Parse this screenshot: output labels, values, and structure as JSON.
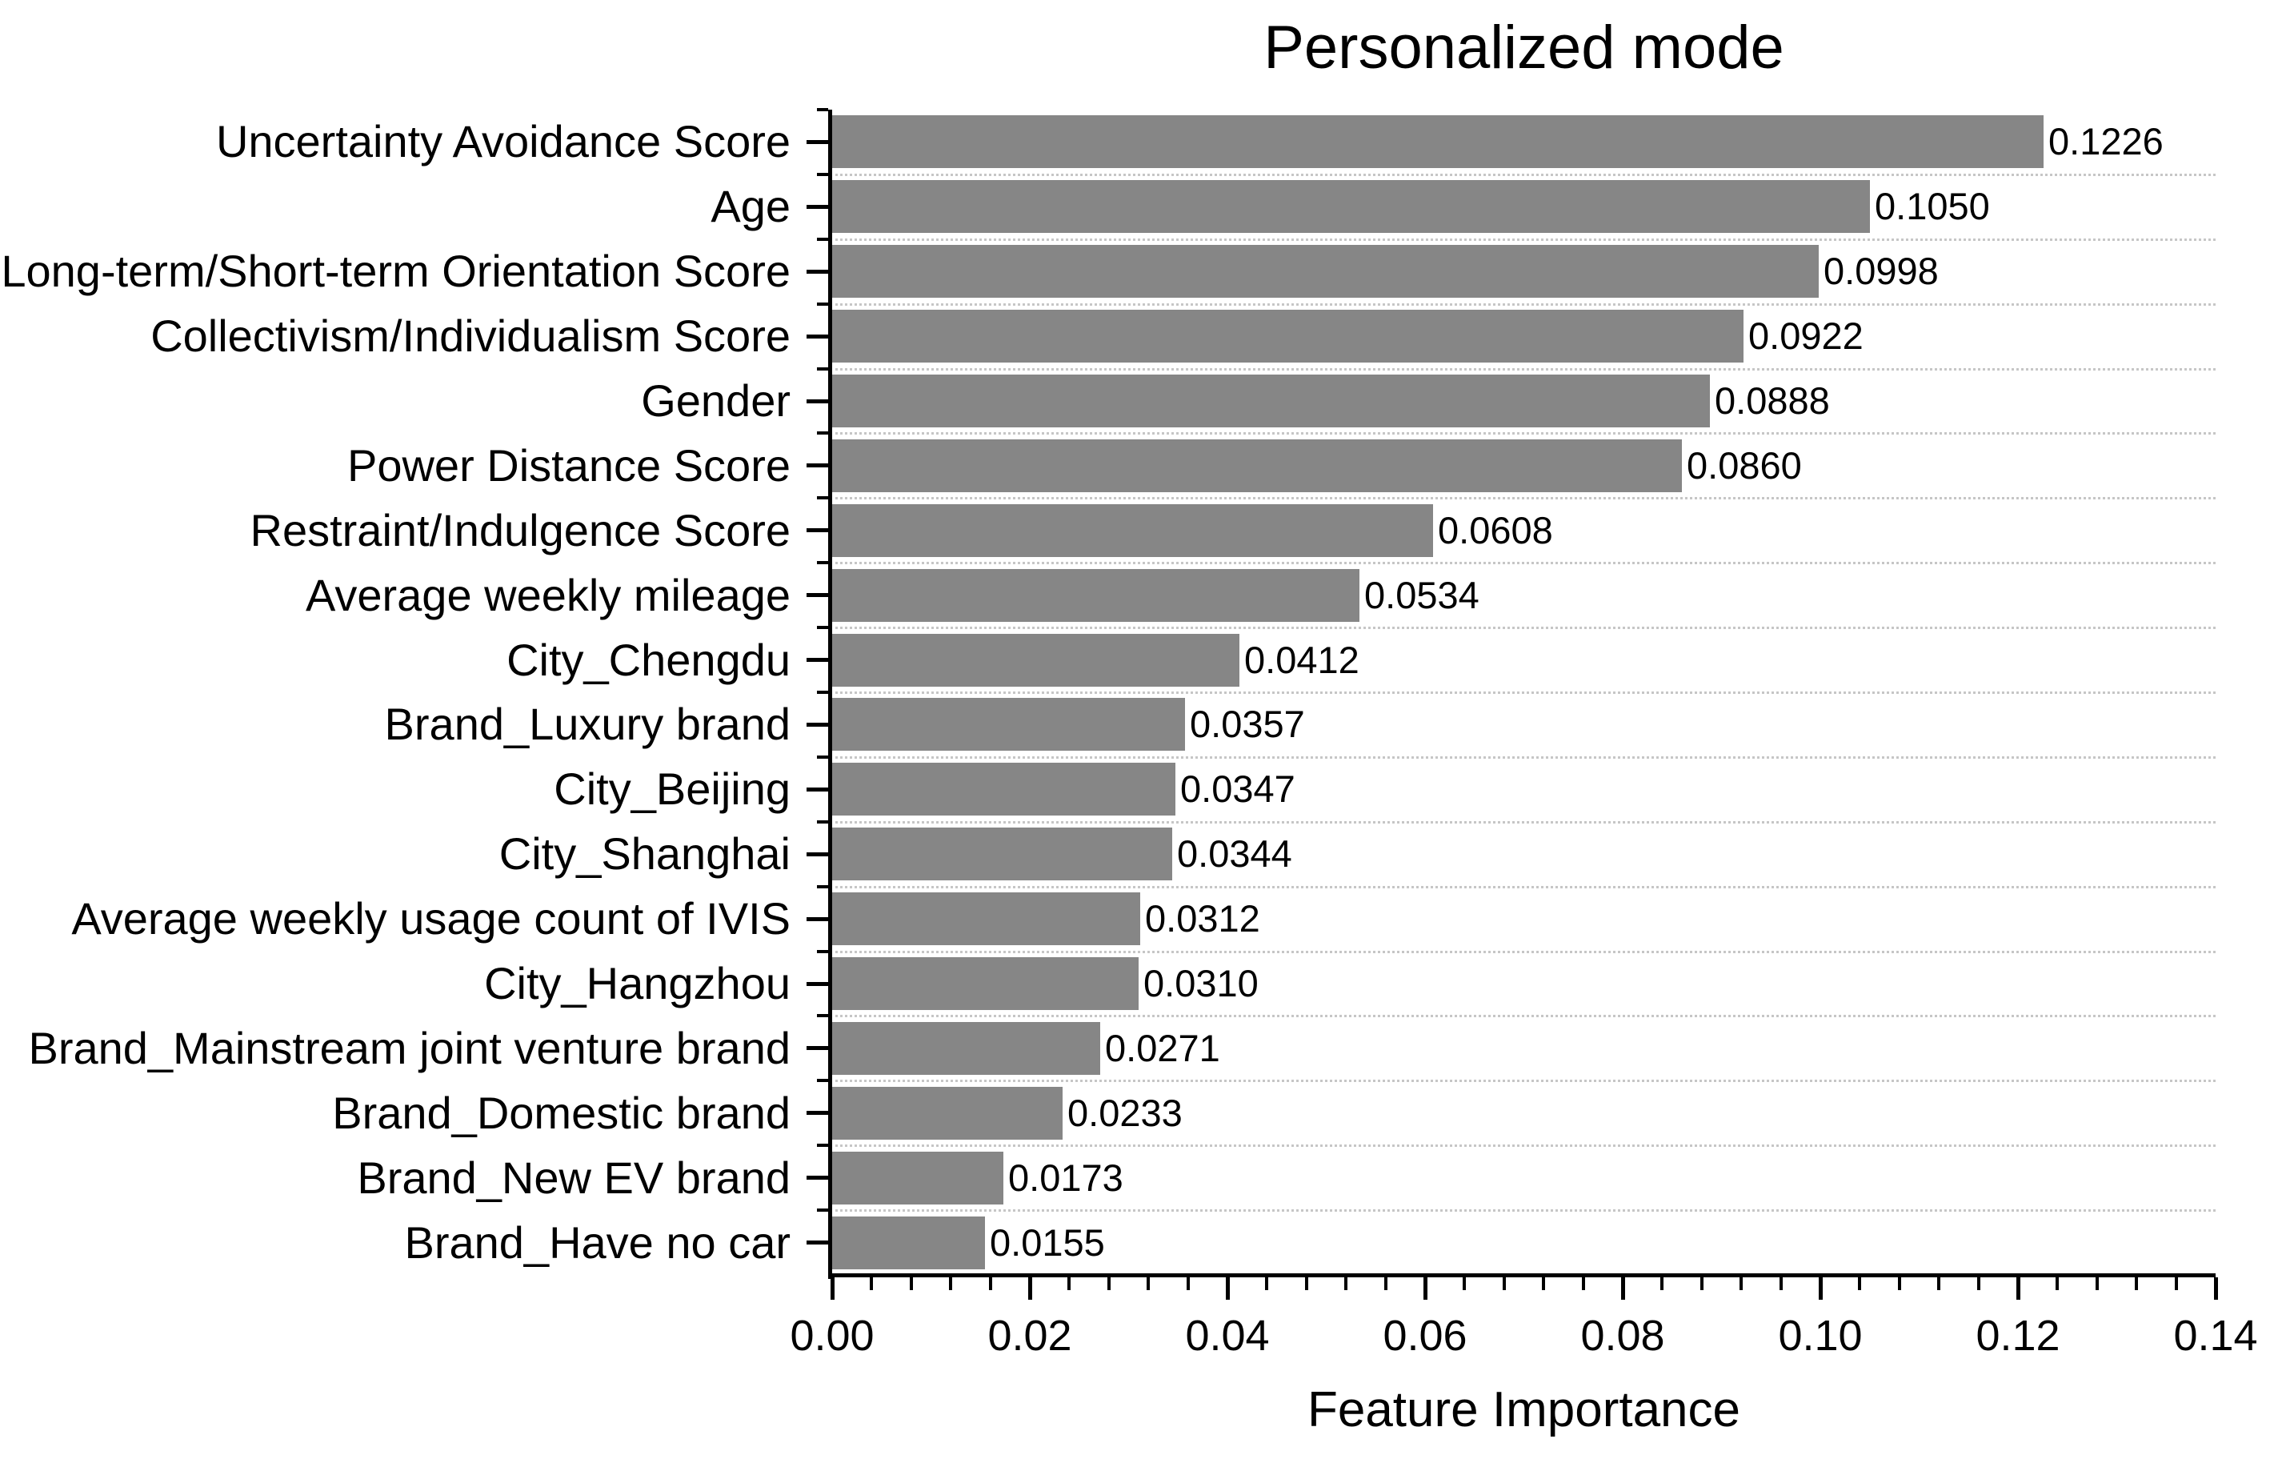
{
  "title": "Personalized mode",
  "chart_data": {
    "type": "bar",
    "orientation": "horizontal",
    "title": "Personalized mode",
    "xlabel": "Feature Importance",
    "ylabel": "",
    "categories": [
      "Uncertainty Avoidance Score",
      "Age",
      "Long-term/Short-term Orientation Score",
      "Collectivism/Individualism Score",
      "Gender",
      "Power Distance Score",
      "Restraint/Indulgence Score",
      "Average weekly mileage",
      "City_Chengdu",
      "Brand_Luxury brand",
      "City_Beijing",
      "City_Shanghai",
      "Average weekly usage count of IVIS",
      "City_Hangzhou",
      "Brand_Mainstream joint venture brand",
      "Brand_Domestic brand",
      "Brand_New EV brand",
      "Brand_Have no car"
    ],
    "values": [
      0.1226,
      0.105,
      0.0998,
      0.0922,
      0.0888,
      0.086,
      0.0608,
      0.0534,
      0.0412,
      0.0357,
      0.0347,
      0.0344,
      0.0312,
      0.031,
      0.0271,
      0.0233,
      0.0173,
      0.0155
    ],
    "value_labels": [
      "0.1226",
      "0.1050",
      "0.0998",
      "0.0922",
      "0.0888",
      "0.0860",
      "0.0608",
      "0.0534",
      "0.0412",
      "0.0357",
      "0.0347",
      "0.0344",
      "0.0312",
      "0.0310",
      "0.0271",
      "0.0233",
      "0.0173",
      "0.0155"
    ],
    "xlim": [
      0,
      0.14
    ],
    "x_major_ticks": [
      "0.00",
      "0.02",
      "0.04",
      "0.06",
      "0.08",
      "0.10",
      "0.12",
      "0.14"
    ],
    "x_major_tick_interval": 0.02,
    "x_minor_tick_interval": 0.004,
    "grid": "horizontal dotted lines between categories",
    "legend": "none",
    "bar_color": "#868686",
    "axis_color": "#000000",
    "grid_color": "#c6c6c6",
    "text_color": "#000000"
  }
}
